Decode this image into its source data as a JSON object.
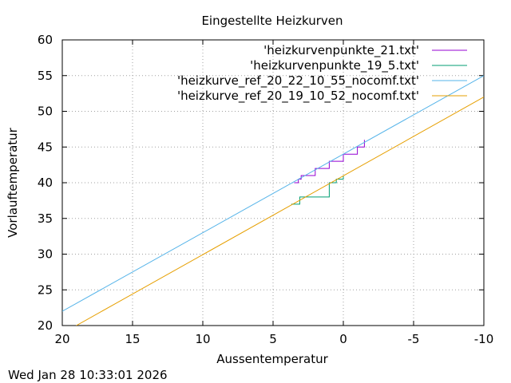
{
  "chart_data": {
    "type": "line",
    "title": "Eingestellte Heizkurven",
    "xlabel": "Aussentemperatur",
    "ylabel": "Vorlauftemperatur",
    "xlim": [
      20,
      -10
    ],
    "ylim": [
      20,
      60
    ],
    "x_ticks": [
      "20",
      "15",
      "10",
      "5",
      "0",
      "-5",
      "-10"
    ],
    "y_ticks": [
      "20",
      "25",
      "30",
      "35",
      "40",
      "45",
      "50",
      "55",
      "60"
    ],
    "grid": true,
    "legend_position": "top-right",
    "series": [
      {
        "name": "'heizkurvenpunkte_21.txt'",
        "color": "#9400d3",
        "style": "steps",
        "x": [
          3.5,
          3.2,
          3.0,
          2.5,
          2.0,
          1.5,
          1.0,
          0.5,
          0.0,
          -0.5,
          -1.0,
          -1.5
        ],
        "y": [
          40,
          40.5,
          41,
          41,
          42,
          42,
          43,
          43,
          44,
          44,
          45,
          46
        ]
      },
      {
        "name": "'heizkurvenpunkte_19_5.txt'",
        "color": "#009e73",
        "style": "steps",
        "x": [
          3.7,
          3.2,
          3.1,
          1.0,
          0.5,
          0.0
        ],
        "y": [
          37,
          37,
          38,
          40,
          40.5,
          41
        ]
      },
      {
        "name": "'heizkurve_ref_20_22_10_55_nocomf.txt'",
        "color": "#56b4e9",
        "style": "line",
        "x": [
          20,
          -10
        ],
        "y": [
          22,
          55
        ]
      },
      {
        "name": "'heizkurve_ref_20_19_10_52_nocomf.txt'",
        "color": "#e69f00",
        "style": "line",
        "x": [
          19,
          -10
        ],
        "y": [
          20,
          52
        ]
      }
    ]
  },
  "footer": {
    "timestamp": "Wed Jan 28 10:33:01 2026"
  }
}
